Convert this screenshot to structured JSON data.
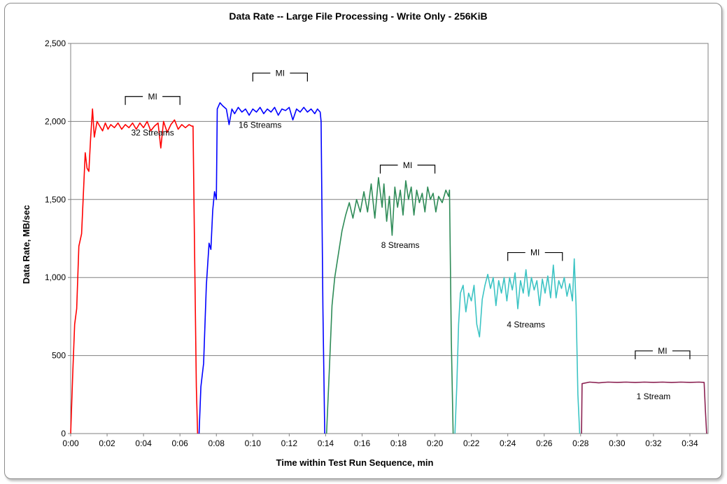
{
  "chart_data": {
    "type": "line",
    "title": "Data Rate -- Large File Processing - Write Only - 256KiB",
    "xlabel": "Time within Test Run Sequence, min",
    "ylabel": "Data Rate, MB/sec",
    "xlim": [
      0,
      35
    ],
    "ylim": [
      0,
      2500
    ],
    "x_ticks": [
      "0:00",
      "0:02",
      "0:04",
      "0:06",
      "0:08",
      "0:10",
      "0:12",
      "0:14",
      "0:16",
      "0:18",
      "0:20",
      "0:22",
      "0:24",
      "0:26",
      "0:28",
      "0:30",
      "0:32",
      "0:34"
    ],
    "y_ticks": [
      "0",
      "500",
      "1,000",
      "1,500",
      "2,000",
      "2,500"
    ],
    "y_tick_values": [
      0,
      500,
      1000,
      1500,
      2000,
      2500
    ],
    "grid": "horizontal",
    "legend": "none",
    "series": [
      {
        "name": "32 Streams",
        "color": "#ff0000",
        "points": [
          [
            0.0,
            0
          ],
          [
            0.12,
            400
          ],
          [
            0.22,
            700
          ],
          [
            0.33,
            800
          ],
          [
            0.45,
            1200
          ],
          [
            0.6,
            1280
          ],
          [
            0.8,
            1800
          ],
          [
            0.9,
            1700
          ],
          [
            1.0,
            1680
          ],
          [
            1.1,
            1900
          ],
          [
            1.2,
            2080
          ],
          [
            1.3,
            1900
          ],
          [
            1.45,
            2000
          ],
          [
            1.6,
            1970
          ],
          [
            1.75,
            1940
          ],
          [
            1.9,
            1990
          ],
          [
            2.05,
            1950
          ],
          [
            2.2,
            1980
          ],
          [
            2.4,
            1960
          ],
          [
            2.6,
            1990
          ],
          [
            2.8,
            1950
          ],
          [
            3.0,
            1980
          ],
          [
            3.2,
            1960
          ],
          [
            3.4,
            1990
          ],
          [
            3.6,
            1950
          ],
          [
            3.8,
            1990
          ],
          [
            4.0,
            1960
          ],
          [
            4.2,
            2000
          ],
          [
            4.4,
            1940
          ],
          [
            4.6,
            1970
          ],
          [
            4.8,
            1990
          ],
          [
            4.95,
            1830
          ],
          [
            5.1,
            2000
          ],
          [
            5.3,
            1930
          ],
          [
            5.5,
            1980
          ],
          [
            5.7,
            2010
          ],
          [
            5.9,
            1950
          ],
          [
            6.1,
            1980
          ],
          [
            6.3,
            1960
          ],
          [
            6.5,
            1980
          ],
          [
            6.65,
            1970
          ],
          [
            6.72,
            1970
          ],
          [
            6.8,
            1200
          ],
          [
            6.9,
            300
          ],
          [
            6.97,
            0
          ]
        ]
      },
      {
        "name": "16 Streams",
        "color": "#0000ff",
        "points": [
          [
            7.05,
            0
          ],
          [
            7.15,
            300
          ],
          [
            7.3,
            450
          ],
          [
            7.45,
            950
          ],
          [
            7.6,
            1220
          ],
          [
            7.7,
            1180
          ],
          [
            7.8,
            1430
          ],
          [
            7.9,
            1550
          ],
          [
            8.0,
            1500
          ],
          [
            8.05,
            2080
          ],
          [
            8.2,
            2120
          ],
          [
            8.35,
            2100
          ],
          [
            8.55,
            2080
          ],
          [
            8.7,
            1980
          ],
          [
            8.85,
            2080
          ],
          [
            9.0,
            2050
          ],
          [
            9.2,
            2090
          ],
          [
            9.4,
            2060
          ],
          [
            9.6,
            2080
          ],
          [
            9.8,
            2040
          ],
          [
            10.0,
            2080
          ],
          [
            10.2,
            2060
          ],
          [
            10.4,
            2090
          ],
          [
            10.6,
            2050
          ],
          [
            10.8,
            2080
          ],
          [
            11.0,
            2060
          ],
          [
            11.2,
            2090
          ],
          [
            11.4,
            2040
          ],
          [
            11.6,
            2080
          ],
          [
            11.8,
            2070
          ],
          [
            12.0,
            2090
          ],
          [
            12.2,
            2010
          ],
          [
            12.4,
            2080
          ],
          [
            12.6,
            2060
          ],
          [
            12.8,
            2090
          ],
          [
            13.0,
            2060
          ],
          [
            13.2,
            2080
          ],
          [
            13.4,
            2050
          ],
          [
            13.55,
            2080
          ],
          [
            13.7,
            2060
          ],
          [
            13.75,
            2000
          ],
          [
            13.85,
            800
          ],
          [
            13.95,
            0
          ]
        ]
      },
      {
        "name": "8 Streams",
        "color": "#2e8b57",
        "points": [
          [
            14.05,
            0
          ],
          [
            14.2,
            400
          ],
          [
            14.35,
            820
          ],
          [
            14.5,
            1000
          ],
          [
            14.7,
            1150
          ],
          [
            14.9,
            1300
          ],
          [
            15.1,
            1400
          ],
          [
            15.3,
            1480
          ],
          [
            15.5,
            1380
          ],
          [
            15.7,
            1500
          ],
          [
            15.9,
            1420
          ],
          [
            16.1,
            1550
          ],
          [
            16.3,
            1420
          ],
          [
            16.5,
            1600
          ],
          [
            16.7,
            1380
          ],
          [
            16.9,
            1640
          ],
          [
            17.1,
            1450
          ],
          [
            17.2,
            1600
          ],
          [
            17.35,
            1360
          ],
          [
            17.5,
            1520
          ],
          [
            17.65,
            1270
          ],
          [
            17.8,
            1580
          ],
          [
            17.95,
            1450
          ],
          [
            18.1,
            1560
          ],
          [
            18.25,
            1400
          ],
          [
            18.4,
            1620
          ],
          [
            18.55,
            1500
          ],
          [
            18.7,
            1580
          ],
          [
            18.85,
            1400
          ],
          [
            19.0,
            1560
          ],
          [
            19.15,
            1480
          ],
          [
            19.3,
            1540
          ],
          [
            19.45,
            1420
          ],
          [
            19.6,
            1580
          ],
          [
            19.75,
            1500
          ],
          [
            19.9,
            1540
          ],
          [
            20.05,
            1420
          ],
          [
            20.2,
            1520
          ],
          [
            20.4,
            1480
          ],
          [
            20.6,
            1560
          ],
          [
            20.75,
            1520
          ],
          [
            20.8,
            1560
          ],
          [
            20.9,
            600
          ],
          [
            21.0,
            0
          ]
        ]
      },
      {
        "name": "4 Streams",
        "color": "#3cc4c4",
        "points": [
          [
            21.1,
            0
          ],
          [
            21.2,
            300
          ],
          [
            21.3,
            700
          ],
          [
            21.4,
            900
          ],
          [
            21.55,
            950
          ],
          [
            21.7,
            780
          ],
          [
            21.85,
            900
          ],
          [
            22.0,
            850
          ],
          [
            22.15,
            950
          ],
          [
            22.3,
            700
          ],
          [
            22.45,
            620
          ],
          [
            22.6,
            860
          ],
          [
            22.75,
            950
          ],
          [
            22.9,
            1020
          ],
          [
            23.05,
            930
          ],
          [
            23.2,
            1000
          ],
          [
            23.35,
            820
          ],
          [
            23.5,
            980
          ],
          [
            23.65,
            900
          ],
          [
            23.8,
            1000
          ],
          [
            23.95,
            850
          ],
          [
            24.1,
            1000
          ],
          [
            24.25,
            920
          ],
          [
            24.4,
            1030
          ],
          [
            24.55,
            800
          ],
          [
            24.7,
            980
          ],
          [
            24.85,
            900
          ],
          [
            25.0,
            1050
          ],
          [
            25.15,
            880
          ],
          [
            25.3,
            1000
          ],
          [
            25.45,
            920
          ],
          [
            25.6,
            980
          ],
          [
            25.75,
            820
          ],
          [
            25.9,
            990
          ],
          [
            26.05,
            900
          ],
          [
            26.2,
            1010
          ],
          [
            26.35,
            870
          ],
          [
            26.5,
            1080
          ],
          [
            26.65,
            870
          ],
          [
            26.8,
            980
          ],
          [
            26.95,
            930
          ],
          [
            27.1,
            1000
          ],
          [
            27.25,
            880
          ],
          [
            27.4,
            960
          ],
          [
            27.55,
            850
          ],
          [
            27.65,
            1120
          ],
          [
            27.75,
            820
          ],
          [
            27.85,
            250
          ],
          [
            27.95,
            0
          ]
        ]
      },
      {
        "name": "1 Stream",
        "color": "#8b2252",
        "points": [
          [
            28.05,
            0
          ],
          [
            28.08,
            320
          ],
          [
            28.5,
            330
          ],
          [
            29.0,
            325
          ],
          [
            29.5,
            330
          ],
          [
            30.0,
            328
          ],
          [
            30.5,
            330
          ],
          [
            31.0,
            327
          ],
          [
            31.5,
            330
          ],
          [
            32.0,
            328
          ],
          [
            32.5,
            330
          ],
          [
            33.0,
            327
          ],
          [
            33.5,
            330
          ],
          [
            34.0,
            328
          ],
          [
            34.5,
            330
          ],
          [
            34.78,
            328
          ],
          [
            34.85,
            150
          ],
          [
            34.92,
            0
          ]
        ]
      }
    ],
    "annotations": [
      {
        "text": "32 Streams",
        "x": 4.5,
        "y": 1910
      },
      {
        "text": "16 Streams",
        "x": 10.4,
        "y": 1960
      },
      {
        "text": "8 Streams",
        "x": 18.1,
        "y": 1190
      },
      {
        "text": "4 Streams",
        "x": 25.0,
        "y": 680
      },
      {
        "text": "1 Stream",
        "x": 32.0,
        "y": 220
      }
    ],
    "mi_brackets": [
      {
        "label": "MI",
        "x_start": 3.0,
        "x_end": 6.0,
        "y": 2160
      },
      {
        "label": "MI",
        "x_start": 10.0,
        "x_end": 13.0,
        "y": 2310
      },
      {
        "label": "MI",
        "x_start": 17.0,
        "x_end": 20.0,
        "y": 1720
      },
      {
        "label": "MI",
        "x_start": 24.0,
        "x_end": 27.0,
        "y": 1160
      },
      {
        "label": "MI",
        "x_start": 31.0,
        "x_end": 34.0,
        "y": 530
      }
    ]
  }
}
